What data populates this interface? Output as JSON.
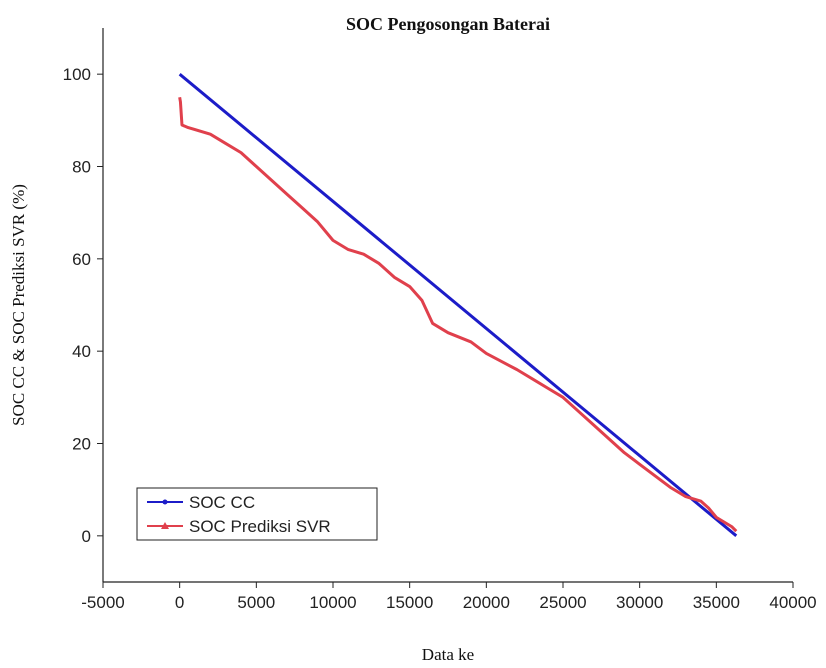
{
  "chart_data": {
    "type": "line",
    "title": "SOC Pengosongan Baterai",
    "x_label": "Data ke",
    "y_label": "SOC CC & SOC Prediksi SVR (%)",
    "xlim": [
      -5000,
      40000
    ],
    "ylim": [
      -10,
      110
    ],
    "xticks": [
      -5000,
      0,
      5000,
      10000,
      15000,
      20000,
      25000,
      30000,
      35000,
      40000
    ],
    "yticks": [
      0,
      20,
      40,
      60,
      80,
      100
    ],
    "legend": "lower left",
    "series": [
      {
        "name": "SOC CC",
        "color": "#1c1cc8",
        "x": [
          0,
          36300
        ],
        "values": [
          100,
          0
        ]
      },
      {
        "name": "SOC Prediksi SVR",
        "color": "#e0404c",
        "x": [
          0,
          50,
          150,
          500,
          2000,
          3000,
          4000,
          5000,
          6000,
          7000,
          8000,
          9000,
          10000,
          11000,
          12000,
          13000,
          14000,
          15000,
          15800,
          16500,
          17500,
          19000,
          20000,
          22000,
          24000,
          25000,
          26000,
          27000,
          28000,
          29000,
          30000,
          31000,
          32000,
          33000,
          34000,
          34500,
          35000,
          36000,
          36300
        ],
        "values": [
          95,
          94,
          89,
          88.5,
          87,
          85,
          83,
          80,
          77,
          74,
          71,
          68,
          64,
          62,
          61,
          59,
          56,
          54,
          51,
          46,
          44,
          42,
          39.5,
          36,
          32,
          30,
          27,
          24,
          21,
          18,
          15.5,
          13,
          10.5,
          8.5,
          7.5,
          6,
          4,
          2,
          1
        ]
      }
    ]
  }
}
